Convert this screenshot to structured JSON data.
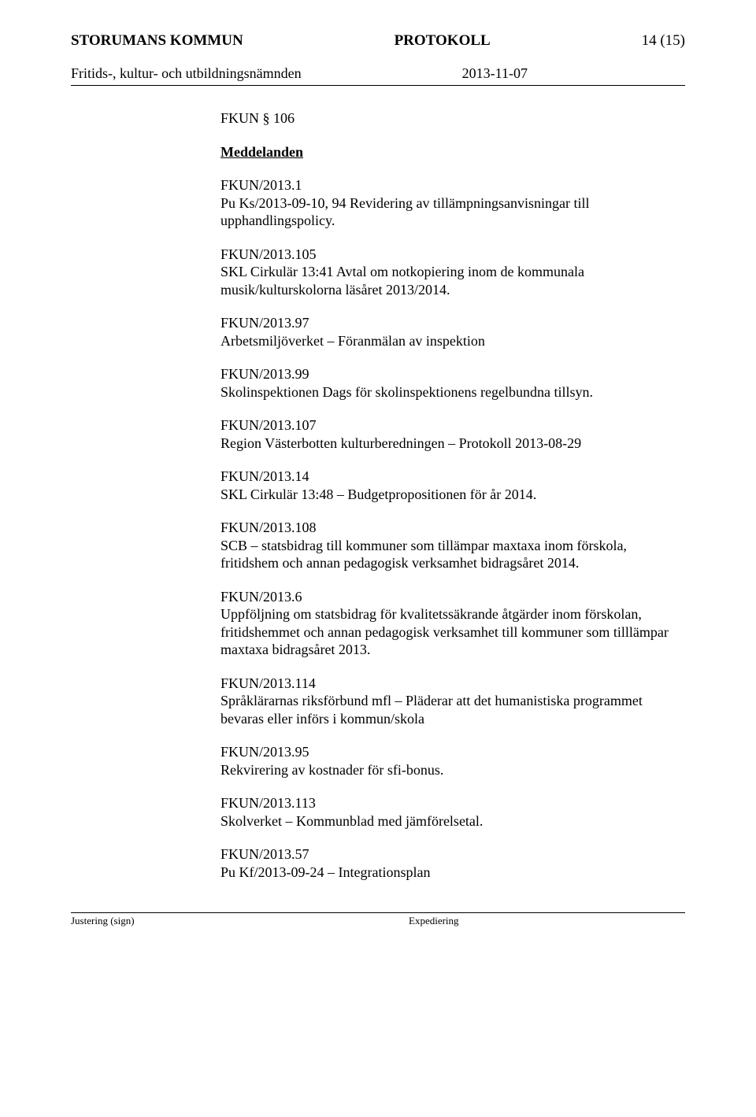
{
  "header": {
    "org": "STORUMANS KOMMUN",
    "doc_type": "PROTOKOLL",
    "page_num": "14 (15)"
  },
  "subheader": {
    "committee": "Fritids-, kultur- och utbildningsnämnden",
    "date": "2013-11-07"
  },
  "section": {
    "num": "FKUN § 106",
    "title": "Meddelanden"
  },
  "entries": [
    {
      "ref": "FKUN/2013.1",
      "body": "Pu Ks/2013-09-10, 94 Revidering av tillämpningsanvisningar till upphandlingspolicy."
    },
    {
      "ref": "FKUN/2013.105",
      "body": "SKL Cirkulär 13:41 Avtal om notkopiering inom de kommunala musik/kulturskolorna läsåret 2013/2014."
    },
    {
      "ref": "FKUN/2013.97",
      "body": "Arbetsmiljöverket – Föranmälan av inspektion"
    },
    {
      "ref": "FKUN/2013.99",
      "body": "Skolinspektionen Dags för skolinspektionens regelbundna tillsyn."
    },
    {
      "ref": "FKUN/2013.107",
      "body": "Region Västerbotten kulturberedningen – Protokoll 2013-08-29"
    },
    {
      "ref": "FKUN/2013.14",
      "body": "SKL Cirkulär 13:48 – Budgetpropositionen för år 2014."
    },
    {
      "ref": "FKUN/2013.108",
      "body": "SCB – statsbidrag till kommuner som tillämpar maxtaxa inom förskola, fritidshem och annan pedagogisk verksamhet bidragsåret 2014."
    },
    {
      "ref": "FKUN/2013.6",
      "body": "Uppföljning om statsbidrag för kvalitetssäkrande åtgärder inom förskolan, fritidshemmet och annan pedagogisk verksamhet till kommuner som tilllämpar maxtaxa bidragsåret 2013."
    },
    {
      "ref": "FKUN/2013.114",
      "body": "Språklärarnas riksförbund mfl – Pläderar att det humanistiska programmet bevaras eller införs i kommun/skola"
    },
    {
      "ref": "FKUN/2013.95",
      "body": "Rekvirering av kostnader för sfi-bonus."
    },
    {
      "ref": "FKUN/2013.113",
      "body": "Skolverket – Kommunblad med jämförelsetal."
    },
    {
      "ref": "FKUN/2013.57",
      "body": "Pu Kf/2013-09-24 – Integrationsplan"
    }
  ],
  "footer": {
    "left": "Justering (sign)",
    "right": "Expediering"
  }
}
